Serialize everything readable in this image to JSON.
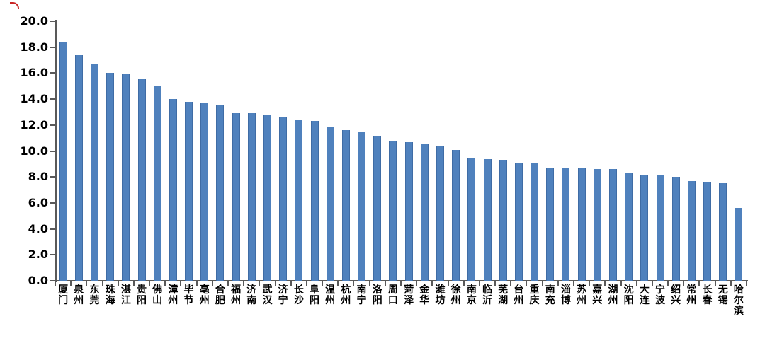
{
  "chart_data": {
    "type": "bar",
    "title": "",
    "categories": [
      "厦门",
      "泉州",
      "东莞",
      "珠海",
      "湛江",
      "贵阳",
      "佛山",
      "漳州",
      "毕节",
      "亳州",
      "合肥",
      "福州",
      "济南",
      "武汉",
      "济宁",
      "长沙",
      "阜阳",
      "温州",
      "杭州",
      "南宁",
      "洛阳",
      "周口",
      "菏泽",
      "金华",
      "潍坊",
      "徐州",
      "南京",
      "临沂",
      "芜湖",
      "台州",
      "重庆",
      "南充",
      "淄博",
      "苏州",
      "嘉兴",
      "湖州",
      "沈阳",
      "大连",
      "宁波",
      "绍兴",
      "常州",
      "长春",
      "无锡",
      "哈尔滨"
    ],
    "values": [
      18.4,
      17.4,
      16.7,
      16.0,
      15.9,
      15.6,
      15.0,
      14.0,
      13.8,
      13.7,
      13.5,
      12.9,
      12.9,
      12.8,
      12.6,
      12.4,
      12.3,
      11.9,
      11.6,
      11.5,
      11.1,
      10.8,
      10.7,
      10.5,
      10.4,
      10.1,
      9.5,
      9.4,
      9.3,
      9.1,
      9.1,
      8.7,
      8.7,
      8.7,
      8.6,
      8.6,
      8.3,
      8.2,
      8.1,
      8.0,
      7.7,
      7.6,
      7.5,
      5.6
    ],
    "xlabel": "",
    "ylabel": "",
    "ylim": [
      0,
      20
    ],
    "ytick_step": 2,
    "ytick_labels": [
      "0.0",
      "2.0",
      "4.0",
      "6.0",
      "8.0",
      "10.0",
      "12.0",
      "14.0",
      "16.0",
      "18.0",
      "20.0"
    ],
    "grid": false,
    "legend": "none",
    "bar_color": "#4f81bd",
    "axis_color": "#595959",
    "label_color": "#000000"
  },
  "decorations": {
    "corner_mark_color": "#c00000"
  }
}
